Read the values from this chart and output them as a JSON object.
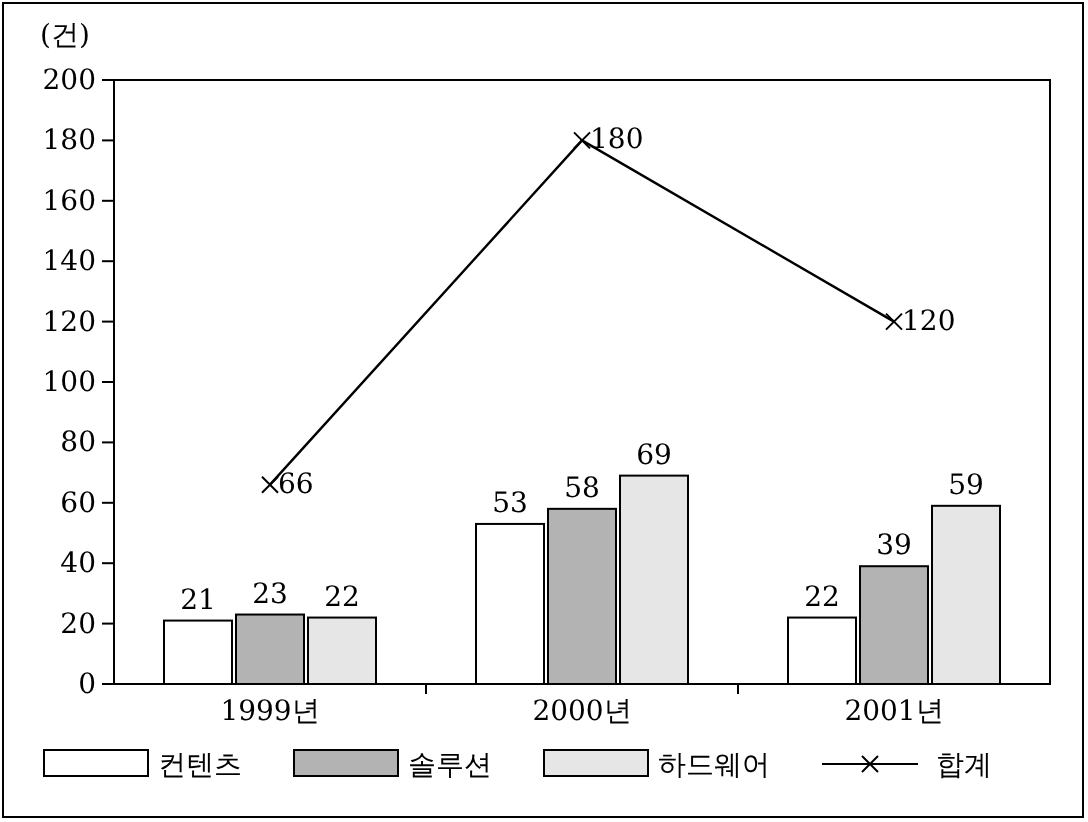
{
  "chart_data": {
    "type": "bar",
    "ylabel": "(건)",
    "categories": [
      "1999년",
      "2000년",
      "2001년"
    ],
    "series": [
      {
        "name": "컨텐츠",
        "color": "#ffffff",
        "values": [
          21,
          53,
          22
        ]
      },
      {
        "name": "솔루션",
        "color": "#b3b3b3",
        "values": [
          23,
          58,
          39
        ]
      },
      {
        "name": "하드웨어",
        "color": "#e6e6e6",
        "values": [
          22,
          69,
          59
        ]
      },
      {
        "name": "합계",
        "type": "line",
        "color": "#000000",
        "values": [
          66,
          180,
          120
        ],
        "marker": "cross"
      }
    ],
    "ylim": [
      0,
      200
    ],
    "yticks": [
      0,
      20,
      40,
      60,
      80,
      100,
      120,
      140,
      160,
      180,
      200
    ],
    "data_labels": true,
    "legend": "bottom"
  }
}
